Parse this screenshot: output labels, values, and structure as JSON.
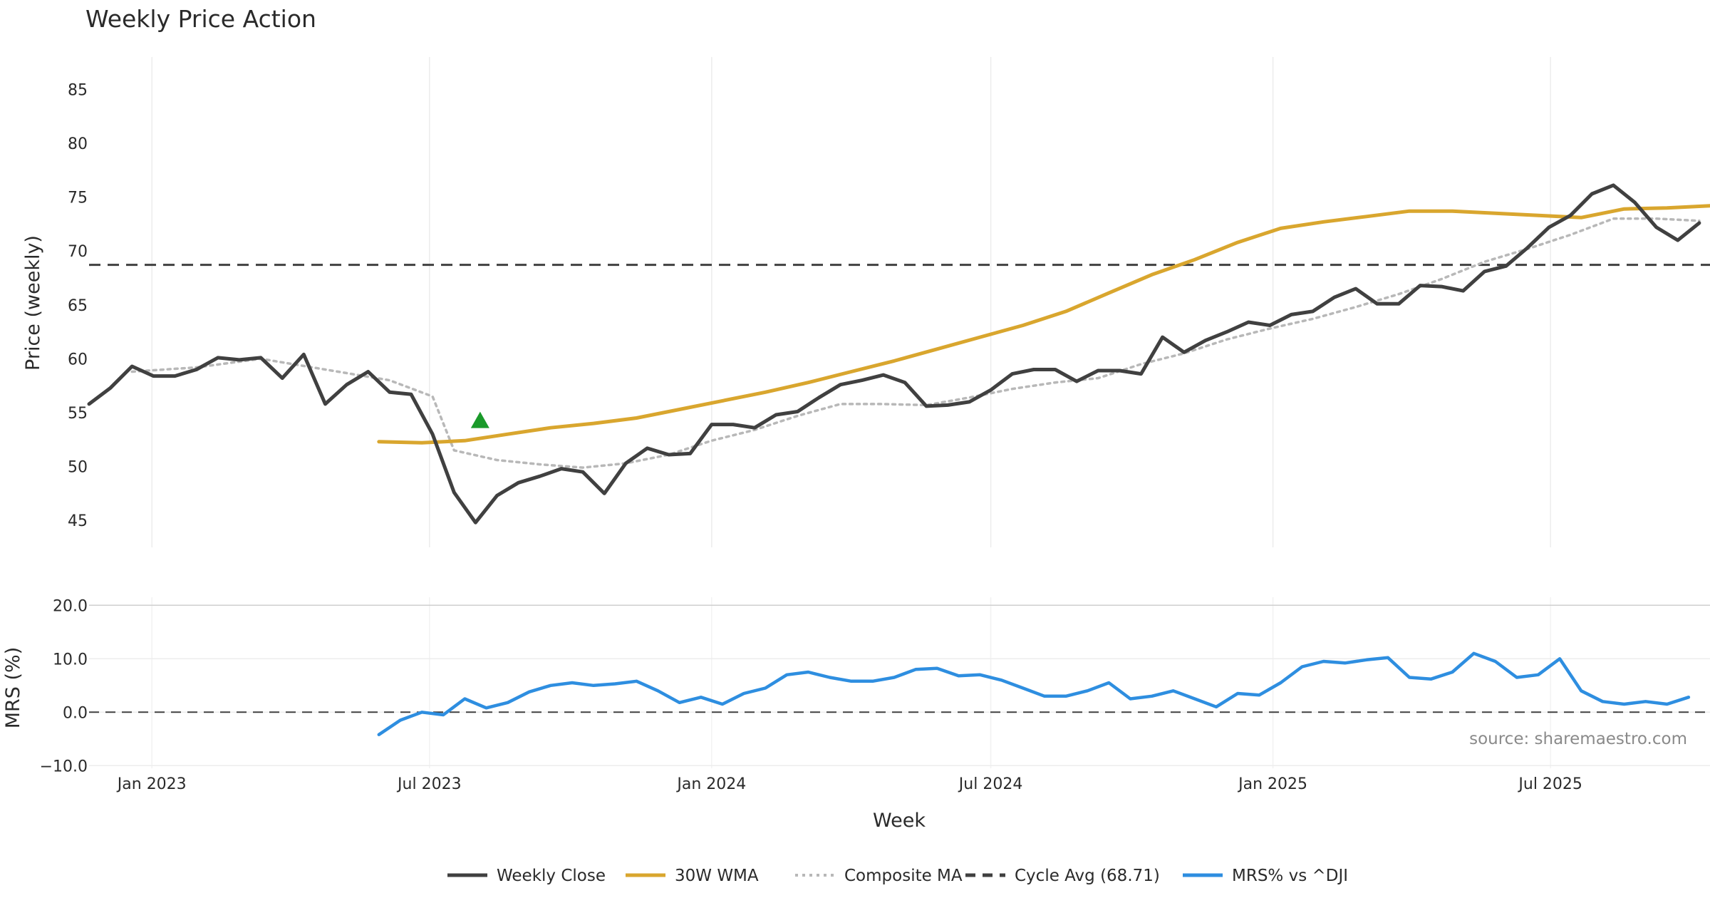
{
  "chart_data": [
    {
      "type": "line",
      "panel": "price",
      "title": "Weekly Price Action",
      "ylabel": "Price (weekly)",
      "ylim": [
        42.5,
        88
      ],
      "yticks": [
        45,
        50,
        55,
        60,
        65,
        70,
        75,
        80,
        85
      ],
      "xlim": [
        "2022-11-21",
        "2025-10-13"
      ],
      "series": [
        {
          "name": "Weekly Close",
          "color": "#404040",
          "style": "solid",
          "points": [
            [
              "2022-11-21",
              55.8
            ],
            [
              "2022-12-05",
              57.3
            ],
            [
              "2022-12-19",
              59.3
            ],
            [
              "2023-01-02",
              58.4
            ],
            [
              "2023-01-16",
              58.4
            ],
            [
              "2023-01-30",
              59.0
            ],
            [
              "2023-02-13",
              60.1
            ],
            [
              "2023-02-27",
              59.9
            ],
            [
              "2023-03-13",
              60.1
            ],
            [
              "2023-03-27",
              58.2
            ],
            [
              "2023-04-10",
              60.4
            ],
            [
              "2023-04-24",
              55.8
            ],
            [
              "2023-05-08",
              57.6
            ],
            [
              "2023-05-22",
              58.8
            ],
            [
              "2023-06-05",
              56.9
            ],
            [
              "2023-06-19",
              56.7
            ],
            [
              "2023-07-03",
              53.0
            ],
            [
              "2023-07-17",
              47.6
            ],
            [
              "2023-07-31",
              44.8
            ],
            [
              "2023-08-14",
              47.3
            ],
            [
              "2023-08-28",
              48.5
            ],
            [
              "2023-09-11",
              49.1
            ],
            [
              "2023-09-25",
              49.8
            ],
            [
              "2023-10-09",
              49.5
            ],
            [
              "2023-10-23",
              47.5
            ],
            [
              "2023-11-06",
              50.3
            ],
            [
              "2023-11-20",
              51.7
            ],
            [
              "2023-12-04",
              51.1
            ],
            [
              "2023-12-18",
              51.2
            ],
            [
              "2024-01-01",
              53.9
            ],
            [
              "2024-01-15",
              53.9
            ],
            [
              "2024-01-29",
              53.6
            ],
            [
              "2024-02-12",
              54.8
            ],
            [
              "2024-02-26",
              55.1
            ],
            [
              "2024-03-11",
              56.4
            ],
            [
              "2024-03-25",
              57.6
            ],
            [
              "2024-04-08",
              58.0
            ],
            [
              "2024-04-22",
              58.5
            ],
            [
              "2024-05-06",
              57.8
            ],
            [
              "2024-05-20",
              55.6
            ],
            [
              "2024-06-03",
              55.7
            ],
            [
              "2024-06-17",
              56.0
            ],
            [
              "2024-07-01",
              57.1
            ],
            [
              "2024-07-15",
              58.6
            ],
            [
              "2024-07-29",
              59.0
            ],
            [
              "2024-08-12",
              59.0
            ],
            [
              "2024-08-26",
              57.9
            ],
            [
              "2024-09-09",
              58.9
            ],
            [
              "2024-09-23",
              58.9
            ],
            [
              "2024-10-07",
              58.6
            ],
            [
              "2024-10-21",
              62.0
            ],
            [
              "2024-11-04",
              60.6
            ],
            [
              "2024-11-18",
              61.7
            ],
            [
              "2024-12-02",
              62.5
            ],
            [
              "2024-12-16",
              63.4
            ],
            [
              "2024-12-30",
              63.1
            ],
            [
              "2025-01-13",
              64.1
            ],
            [
              "2025-01-27",
              64.4
            ],
            [
              "2025-02-10",
              65.7
            ],
            [
              "2025-02-24",
              66.5
            ],
            [
              "2025-03-10",
              65.1
            ],
            [
              "2025-03-24",
              65.1
            ],
            [
              "2025-04-07",
              66.8
            ],
            [
              "2025-04-21",
              66.7
            ],
            [
              "2025-05-05",
              66.3
            ],
            [
              "2025-05-19",
              68.1
            ],
            [
              "2025-06-02",
              68.6
            ],
            [
              "2025-06-16",
              70.3
            ],
            [
              "2025-06-30",
              72.2
            ],
            [
              "2025-07-14",
              73.3
            ],
            [
              "2025-07-28",
              75.3
            ],
            [
              "2025-08-11",
              76.1
            ],
            [
              "2025-08-25",
              74.5
            ],
            [
              "2025-09-08",
              72.2
            ],
            [
              "2025-09-22",
              71.0
            ],
            [
              "2025-10-06",
              72.6
            ]
          ]
        },
        {
          "name": "30W WMA",
          "color": "#d9a62e",
          "style": "solid",
          "points": [
            [
              "2023-05-29",
              52.3
            ],
            [
              "2023-06-26",
              52.2
            ],
            [
              "2023-07-24",
              52.4
            ],
            [
              "2023-08-21",
              53.0
            ],
            [
              "2023-09-18",
              53.6
            ],
            [
              "2023-10-16",
              54.0
            ],
            [
              "2023-11-13",
              54.5
            ],
            [
              "2023-12-11",
              55.3
            ],
            [
              "2024-01-08",
              56.1
            ],
            [
              "2024-02-05",
              56.9
            ],
            [
              "2024-03-04",
              57.8
            ],
            [
              "2024-04-01",
              58.8
            ],
            [
              "2024-04-29",
              59.8
            ],
            [
              "2024-05-27",
              60.9
            ],
            [
              "2024-06-24",
              62.0
            ],
            [
              "2024-07-22",
              63.1
            ],
            [
              "2024-08-19",
              64.4
            ],
            [
              "2024-09-16",
              66.1
            ],
            [
              "2024-10-14",
              67.8
            ],
            [
              "2024-11-11",
              69.2
            ],
            [
              "2024-12-09",
              70.8
            ],
            [
              "2025-01-06",
              72.1
            ],
            [
              "2025-02-03",
              72.7
            ],
            [
              "2025-03-03",
              73.2
            ],
            [
              "2025-03-31",
              73.7
            ],
            [
              "2025-04-28",
              73.7
            ],
            [
              "2025-05-26",
              73.5
            ],
            [
              "2025-06-23",
              73.3
            ],
            [
              "2025-07-21",
              73.1
            ],
            [
              "2025-08-18",
              73.9
            ],
            [
              "2025-09-15",
              74.0
            ],
            [
              "2025-10-13",
              74.2
            ]
          ]
        },
        {
          "name": "Composite MA",
          "color": "#b8b8b8",
          "style": "dotted",
          "points": [
            [
              "2022-12-19",
              58.8
            ],
            [
              "2023-01-30",
              59.2
            ],
            [
              "2023-03-13",
              60.0
            ],
            [
              "2023-04-24",
              59.0
            ],
            [
              "2023-06-05",
              58.0
            ],
            [
              "2023-07-03",
              56.5
            ],
            [
              "2023-07-17",
              51.5
            ],
            [
              "2023-08-14",
              50.6
            ],
            [
              "2023-09-11",
              50.2
            ],
            [
              "2023-10-09",
              49.9
            ],
            [
              "2023-11-06",
              50.3
            ],
            [
              "2023-12-04",
              51.1
            ],
            [
              "2024-01-01",
              52.4
            ],
            [
              "2024-01-29",
              53.4
            ],
            [
              "2024-02-26",
              54.7
            ],
            [
              "2024-03-25",
              55.8
            ],
            [
              "2024-04-22",
              55.8
            ],
            [
              "2024-05-20",
              55.7
            ],
            [
              "2024-06-17",
              56.4
            ],
            [
              "2024-07-15",
              57.2
            ],
            [
              "2024-08-12",
              57.8
            ],
            [
              "2024-09-09",
              58.2
            ],
            [
              "2024-10-07",
              59.5
            ],
            [
              "2024-11-04",
              60.5
            ],
            [
              "2024-12-02",
              61.8
            ],
            [
              "2024-12-30",
              62.8
            ],
            [
              "2025-01-27",
              63.7
            ],
            [
              "2025-02-24",
              64.8
            ],
            [
              "2025-03-24",
              66.0
            ],
            [
              "2025-04-21",
              67.4
            ],
            [
              "2025-05-19",
              69.0
            ],
            [
              "2025-06-16",
              70.2
            ],
            [
              "2025-07-14",
              71.5
            ],
            [
              "2025-08-11",
              73.0
            ],
            [
              "2025-09-08",
              73.0
            ],
            [
              "2025-10-06",
              72.8
            ]
          ]
        }
      ],
      "reference_line": {
        "name": "Cycle Avg (68.71)",
        "value": 68.71,
        "color": "#404040",
        "style": "dashed"
      },
      "annotations": [
        {
          "type": "marker",
          "shape": "triangle-up",
          "date": "2023-08-03",
          "value": 54.3,
          "color": "#1a9a2a"
        }
      ],
      "grid": "vertical"
    },
    {
      "type": "line",
      "panel": "mrs",
      "ylabel": "MRS (%)",
      "xlabel": "Week",
      "ylim": [
        -10.5,
        21.5
      ],
      "yticks": [
        "20.0",
        "10.0",
        "0.0",
        "−10.0"
      ],
      "ytick_values": [
        20,
        10,
        0,
        -10
      ],
      "xticks": [
        "Jan 2023",
        "Jul 2023",
        "Jan 2024",
        "Jul 2024",
        "Jan 2025",
        "Jul 2025"
      ],
      "xtick_dates": [
        "2023-01-01",
        "2023-07-01",
        "2024-01-01",
        "2024-07-01",
        "2025-01-01",
        "2025-07-01"
      ],
      "series": [
        {
          "name": "MRS% vs ^DJI",
          "color": "#2e8ee0",
          "style": "solid",
          "points": [
            [
              "2023-05-29",
              -4.2
            ],
            [
              "2023-06-12",
              -1.5
            ],
            [
              "2023-06-26",
              0.0
            ],
            [
              "2023-07-10",
              -0.5
            ],
            [
              "2023-07-24",
              2.5
            ],
            [
              "2023-08-07",
              0.8
            ],
            [
              "2023-08-21",
              1.8
            ],
            [
              "2023-09-04",
              3.8
            ],
            [
              "2023-09-18",
              5.0
            ],
            [
              "2023-10-02",
              5.5
            ],
            [
              "2023-10-16",
              5.0
            ],
            [
              "2023-10-30",
              5.3
            ],
            [
              "2023-11-13",
              5.8
            ],
            [
              "2023-11-27",
              4.0
            ],
            [
              "2023-12-11",
              1.8
            ],
            [
              "2023-12-25",
              2.8
            ],
            [
              "2024-01-08",
              1.5
            ],
            [
              "2024-01-22",
              3.5
            ],
            [
              "2024-02-05",
              4.5
            ],
            [
              "2024-02-19",
              7.0
            ],
            [
              "2024-03-04",
              7.5
            ],
            [
              "2024-03-18",
              6.5
            ],
            [
              "2024-04-01",
              5.8
            ],
            [
              "2024-04-15",
              5.8
            ],
            [
              "2024-04-29",
              6.5
            ],
            [
              "2024-05-13",
              8.0
            ],
            [
              "2024-05-27",
              8.2
            ],
            [
              "2024-06-10",
              6.8
            ],
            [
              "2024-06-24",
              7.0
            ],
            [
              "2024-07-08",
              6.0
            ],
            [
              "2024-07-22",
              4.5
            ],
            [
              "2024-08-05",
              3.0
            ],
            [
              "2024-08-19",
              3.0
            ],
            [
              "2024-09-02",
              4.0
            ],
            [
              "2024-09-16",
              5.5
            ],
            [
              "2024-09-30",
              2.5
            ],
            [
              "2024-10-14",
              3.0
            ],
            [
              "2024-10-28",
              4.0
            ],
            [
              "2024-11-11",
              2.5
            ],
            [
              "2024-11-25",
              1.0
            ],
            [
              "2024-12-09",
              3.5
            ],
            [
              "2024-12-23",
              3.2
            ],
            [
              "2025-01-06",
              5.5
            ],
            [
              "2025-01-20",
              8.5
            ],
            [
              "2025-02-03",
              9.5
            ],
            [
              "2025-02-17",
              9.2
            ],
            [
              "2025-03-03",
              9.8
            ],
            [
              "2025-03-17",
              10.2
            ],
            [
              "2025-03-31",
              6.5
            ],
            [
              "2025-04-14",
              6.2
            ],
            [
              "2025-04-28",
              7.5
            ],
            [
              "2025-05-12",
              11.0
            ],
            [
              "2025-05-26",
              9.5
            ],
            [
              "2025-06-09",
              6.5
            ],
            [
              "2025-06-23",
              7.0
            ],
            [
              "2025-07-07",
              10.0
            ],
            [
              "2025-07-21",
              4.0
            ],
            [
              "2025-08-04",
              2.0
            ],
            [
              "2025-08-18",
              1.5
            ],
            [
              "2025-09-01",
              2.0
            ],
            [
              "2025-09-15",
              1.5
            ],
            [
              "2025-09-29",
              2.8
            ]
          ]
        }
      ],
      "reference_line": {
        "value": 0,
        "color": "#404040",
        "style": "dashed"
      }
    }
  ],
  "legend": {
    "position": "bottom-center",
    "items": [
      {
        "label": "Weekly Close",
        "color": "#404040",
        "style": "solid"
      },
      {
        "label": "30W WMA",
        "color": "#d9a62e",
        "style": "solid"
      },
      {
        "label": "Composite MA",
        "color": "#b8b8b8",
        "style": "dotted"
      },
      {
        "label": "Cycle Avg (68.71)",
        "color": "#404040",
        "style": "dashed"
      },
      {
        "label": "MRS% vs ^DJI",
        "color": "#2e8ee0",
        "style": "solid"
      }
    ]
  },
  "watermark": "source: sharemaestro.com"
}
